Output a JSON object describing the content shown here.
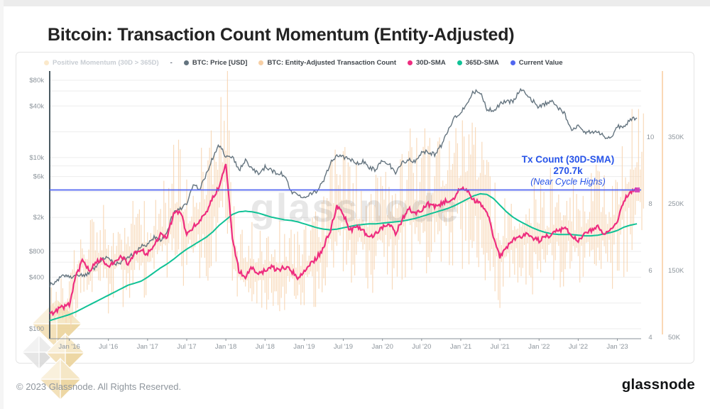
{
  "page": {
    "title": "Bitcoin: Transaction Count Momentum (Entity-Adjusted)",
    "watermark_text": "glassnode",
    "footer_copyright": "© 2023 Glassnode. All Rights Reserved.",
    "brand_wordmark": "glassnode"
  },
  "legend": {
    "separator": "-",
    "items": [
      {
        "label": "Positive Momentum (30D > 365D)",
        "color": "#fbe9cb",
        "muted": true
      },
      {
        "label": "BTC: Price [USD]",
        "color": "#64747f",
        "muted": false
      },
      {
        "label": "BTC: Entity-Adjusted Transaction Count",
        "color": "#f7cfa5",
        "muted": false
      },
      {
        "label": "30D-SMA",
        "color": "#ee2d7f",
        "muted": false
      },
      {
        "label": "365D-SMA",
        "color": "#10c296",
        "muted": false
      },
      {
        "label": "Current Value",
        "color": "#5166f0",
        "muted": false
      }
    ]
  },
  "chart_data": {
    "type": "mixed-line-bar",
    "x_start_month": "2015-10",
    "x_step_months": 1,
    "x_tick_labels": [
      "Jan '16",
      "Jul '16",
      "Jan '17",
      "Jul '17",
      "Jan '18",
      "Jul '18",
      "Jan '19",
      "Jul '19",
      "Jan '20",
      "Jul '20",
      "Jan '21",
      "Jul '21",
      "Jan '22",
      "Jul '22",
      "Jan '23"
    ],
    "left_axis": {
      "scale": "log",
      "tick_labels": [
        "$80k",
        "$40k",
        "$10k",
        "$6k",
        "$2k",
        "$800",
        "$400",
        "$100"
      ],
      "tick_values": [
        80000,
        40000,
        10000,
        6000,
        2000,
        800,
        400,
        100
      ],
      "grid_values": [
        80000,
        60000,
        40000,
        20000,
        10000,
        8000,
        6000,
        4000,
        2000,
        1000,
        800,
        600,
        400,
        200,
        100
      ]
    },
    "right_axis_inner": {
      "tick_labels": [
        "10",
        "8",
        "6",
        "4"
      ],
      "tick_values": [
        10,
        8,
        6,
        4
      ]
    },
    "right_axis_outer": {
      "tick_labels": [
        "350K",
        "250K",
        "150K",
        "50K"
      ],
      "tick_values_k": [
        350,
        250,
        150,
        50
      ]
    },
    "series": {
      "price_usd": [
        320,
        360,
        430,
        400,
        430,
        415,
        450,
        530,
        670,
        660,
        580,
        610,
        700,
        740,
        950,
        960,
        1190,
        1080,
        1350,
        2300,
        2500,
        2870,
        4700,
        4340,
        6450,
        10000,
        14000,
        10200,
        10300,
        7000,
        9250,
        7500,
        6400,
        7750,
        7000,
        6600,
        6300,
        4000,
        3740,
        3460,
        3850,
        4100,
        5300,
        8560,
        10800,
        10000,
        9600,
        8300,
        9150,
        7550,
        7200,
        9350,
        8550,
        6440,
        8620,
        9450,
        9140,
        11350,
        11650,
        10780,
        13800,
        19700,
        29000,
        33100,
        45200,
        58800,
        57750,
        37330,
        35040,
        41550,
        47160,
        43790,
        61300,
        57000,
        46200,
        38480,
        43190,
        45540,
        37640,
        31790,
        19985,
        23300,
        20050,
        19430,
        20490,
        17160,
        16540,
        23130,
        23140,
        28000,
        29000
      ],
      "sma30_k": [
        85,
        90,
        95,
        100,
        140,
        165,
        150,
        160,
        170,
        155,
        165,
        170,
        160,
        175,
        180,
        175,
        190,
        205,
        200,
        235,
        240,
        205,
        215,
        225,
        235,
        260,
        275,
        310,
        200,
        150,
        140,
        155,
        145,
        150,
        155,
        150,
        155,
        150,
        140,
        150,
        160,
        170,
        185,
        210,
        245,
        235,
        210,
        215,
        210,
        200,
        205,
        215,
        220,
        205,
        225,
        245,
        235,
        240,
        250,
        245,
        250,
        255,
        260,
        275,
        270,
        255,
        250,
        240,
        200,
        170,
        185,
        195,
        200,
        205,
        200,
        195,
        200,
        205,
        210,
        215,
        200,
        195,
        205,
        210,
        215,
        205,
        210,
        225,
        255,
        268,
        271
      ],
      "sma365_k": [
        75,
        78,
        81,
        84,
        88,
        93,
        98,
        103,
        108,
        113,
        118,
        123,
        128,
        131,
        134,
        140,
        147,
        154,
        160,
        167,
        175,
        182,
        188,
        194,
        200,
        208,
        218,
        226,
        234,
        238,
        239,
        238,
        236,
        233,
        230,
        228,
        226,
        225,
        223,
        220,
        217,
        214,
        212,
        211,
        212,
        214,
        216,
        218,
        219,
        220,
        220,
        221,
        222,
        223,
        224,
        226,
        228,
        231,
        234,
        237,
        240,
        243,
        247,
        252,
        257,
        262,
        265,
        264,
        258,
        248,
        238,
        230,
        224,
        219,
        214,
        210,
        207,
        205,
        204,
        204,
        204,
        203,
        202,
        202,
        203,
        205,
        207,
        210,
        215,
        218,
        220
      ]
    },
    "raw_count_band_k": {
      "description": "daily entity-adjusted tx count drawn as thin vertical range bars around the 30D-SMA",
      "lo_factor": 0.55,
      "hi_factor": 1.5,
      "spike_hi_k": {
        "26": 410,
        "27": 455,
        "45": 335,
        "63": 375,
        "89": 392,
        "90": 362
      }
    },
    "current_value_k": 270.7,
    "annotation": {
      "line1": "Tx Count (30D-SMA)",
      "line2": "270.7k",
      "line3": "(Near Cycle Highs)"
    },
    "colors": {
      "price": "#64747f",
      "tx_bars": "#f7d4b0",
      "sma30": "#ee2d7f",
      "sma365": "#10c296",
      "current_value": "#5266f2",
      "current_marker": "#d13db8",
      "annotation": "#2653e9",
      "grid": "#ededed",
      "axis_left_line": "#4a5a62",
      "axis_bottom_line": "#8a9299",
      "axis_right_line": "#f9cb9e",
      "tick_text": "#8d959c"
    }
  }
}
